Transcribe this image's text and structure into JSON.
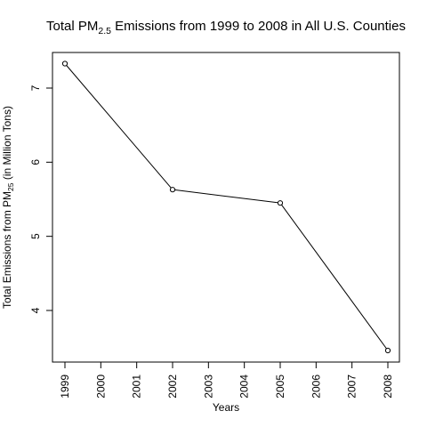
{
  "chart_data": {
    "type": "line",
    "title": {
      "prefix": "Total PM",
      "subscript": "2.5",
      "suffix": " Emissions from 1999 to 2008 in All U.S. Counties"
    },
    "xlabel": "Years",
    "ylabel": {
      "prefix": "Total Emissions from  PM",
      "subscript": "25",
      "suffix": " (in Million Tons)"
    },
    "x": [
      1999,
      2002,
      2005,
      2008
    ],
    "values": [
      7.33,
      5.63,
      5.45,
      3.46
    ],
    "xlim": [
      1999,
      2008
    ],
    "ylim": [
      3.3,
      7.45
    ],
    "xticks": [
      "1999",
      "2000",
      "2001",
      "2002",
      "2003",
      "2004",
      "2005",
      "2006",
      "2007",
      "2008"
    ],
    "yticks": [
      "4",
      "5",
      "6",
      "7"
    ],
    "grid": false,
    "marker": "open-circle",
    "line_color": "#000000"
  }
}
